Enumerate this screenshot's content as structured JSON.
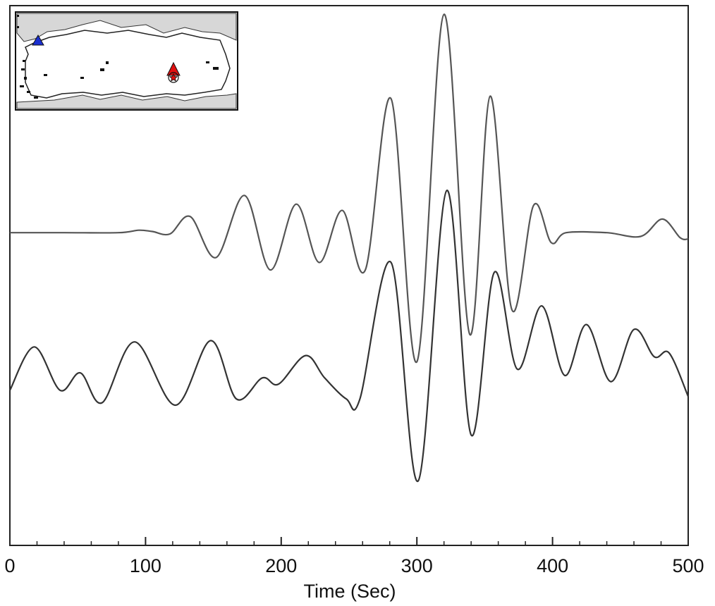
{
  "chart_data": {
    "type": "line",
    "title": "",
    "xlabel": "Time (Sec)",
    "ylabel": "",
    "xlim": [
      0,
      500
    ],
    "xticks": [
      0,
      100,
      200,
      300,
      400,
      500
    ],
    "grid": false,
    "legend": "none",
    "series": [
      {
        "color": "#555555",
        "baseline": 0.62,
        "values": [
          [
            0,
            0.62
          ],
          [
            40,
            0.62
          ],
          [
            80,
            0.62
          ],
          [
            95,
            0.64
          ],
          [
            105,
            0.63
          ],
          [
            118,
            0.61
          ],
          [
            133,
            0.75
          ],
          [
            152,
            0.42
          ],
          [
            173,
            0.92
          ],
          [
            192,
            0.32
          ],
          [
            211,
            0.85
          ],
          [
            228,
            0.38
          ],
          [
            245,
            0.8
          ],
          [
            262,
            0.32
          ],
          [
            281,
            1.7
          ],
          [
            300,
            -0.42
          ],
          [
            320,
            2.38
          ],
          [
            339,
            -0.2
          ],
          [
            354,
            1.72
          ],
          [
            370,
            0.0
          ],
          [
            386,
            0.84
          ],
          [
            399,
            0.54
          ],
          [
            410,
            0.62
          ],
          [
            440,
            0.62
          ],
          [
            465,
            0.59
          ],
          [
            481,
            0.73
          ],
          [
            494,
            0.58
          ],
          [
            500,
            0.57
          ]
        ]
      },
      {
        "color": "#333333",
        "baseline": -0.65,
        "values": [
          [
            0,
            -0.65
          ],
          [
            18,
            -0.3
          ],
          [
            37,
            -0.65
          ],
          [
            52,
            -0.51
          ],
          [
            68,
            -0.75
          ],
          [
            92,
            -0.26
          ],
          [
            122,
            -0.77
          ],
          [
            148,
            -0.25
          ],
          [
            167,
            -0.72
          ],
          [
            186,
            -0.55
          ],
          [
            198,
            -0.6
          ],
          [
            218,
            -0.37
          ],
          [
            232,
            -0.55
          ],
          [
            248,
            -0.72
          ],
          [
            258,
            -0.72
          ],
          [
            281,
            0.38
          ],
          [
            301,
            -1.38
          ],
          [
            322,
            0.96
          ],
          [
            340,
            -1.01
          ],
          [
            357,
            0.3
          ],
          [
            374,
            -0.48
          ],
          [
            392,
            0.03
          ],
          [
            409,
            -0.53
          ],
          [
            425,
            -0.12
          ],
          [
            443,
            -0.58
          ],
          [
            460,
            -0.16
          ],
          [
            475,
            -0.38
          ],
          [
            486,
            -0.35
          ],
          [
            500,
            -0.7
          ]
        ]
      }
    ],
    "inset_map": {
      "markers": [
        {
          "shape": "triangle",
          "color": "#1a2fd0"
        },
        {
          "shape": "triangle",
          "color": "#e01010"
        },
        {
          "shape": "star",
          "color": "#e01010"
        }
      ]
    }
  }
}
